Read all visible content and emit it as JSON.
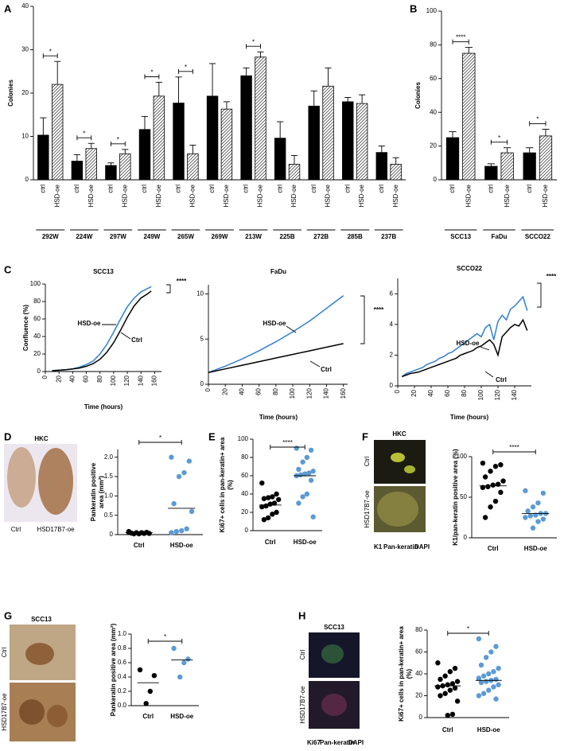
{
  "chart_data": [
    {
      "type": "bar",
      "panel": "A",
      "ylabel": "Colonies",
      "ylim": [
        0,
        40
      ],
      "yticks": [
        0,
        10,
        20,
        30,
        40
      ],
      "categories": [
        "292W",
        "224W",
        "297W",
        "249W",
        "265W",
        "269W",
        "213W",
        "225B",
        "272B",
        "285B",
        "237B"
      ],
      "series": [
        {
          "name": "ctrl",
          "color": "#000000",
          "values": [
            10.3,
            4.3,
            3.3,
            11.6,
            17.7,
            19.3,
            24,
            9.6,
            17,
            18,
            6.3
          ],
          "errors": [
            4,
            1.5,
            0.6,
            3,
            6,
            7.5,
            1.8,
            3.8,
            3.5,
            1,
            1.5
          ]
        },
        {
          "name": "HSD-oe",
          "color": "#ffffff",
          "hatch": true,
          "values": [
            22,
            7.2,
            6,
            19.3,
            6,
            16.3,
            28.3,
            3.6,
            21.6,
            17.6,
            3.6
          ],
          "errors": [
            5.3,
            1.2,
            1,
            3.2,
            2,
            1.7,
            1.2,
            2,
            4.2,
            2,
            1.5
          ]
        }
      ],
      "significance": [
        "*",
        "*",
        "*",
        "*",
        "*",
        null,
        "*",
        null,
        null,
        null,
        null
      ]
    },
    {
      "type": "bar",
      "panel": "B",
      "ylabel": "Colonies",
      "ylim": [
        0,
        100
      ],
      "yticks": [
        0,
        20,
        40,
        60,
        80,
        100
      ],
      "categories": [
        "SCC13",
        "FaDu",
        "SCCO22"
      ],
      "series": [
        {
          "name": "ctrl",
          "color": "#000000",
          "values": [
            25,
            8,
            16
          ],
          "errors": [
            3.5,
            1.5,
            3
          ]
        },
        {
          "name": "HSD-oe",
          "color": "#ffffff",
          "hatch": true,
          "values": [
            75,
            16,
            26
          ],
          "errors": [
            3.5,
            3,
            4
          ]
        }
      ],
      "significance": [
        "****",
        "*",
        "*"
      ]
    },
    {
      "type": "line",
      "panel": "C",
      "title": "SCC13",
      "ylabel": "Confluence (%)",
      "xlabel": "Time (hours)",
      "xlim": [
        0,
        170
      ],
      "xticks": [
        0,
        20,
        40,
        60,
        80,
        100,
        120,
        140,
        160
      ],
      "ylim": [
        0,
        100
      ],
      "yticks": [
        0,
        20,
        40,
        60,
        80,
        100
      ],
      "x": [
        10,
        20,
        30,
        40,
        50,
        60,
        70,
        80,
        90,
        100,
        110,
        120,
        130,
        140,
        150,
        155
      ],
      "series": [
        {
          "name": "HSD-oe",
          "color": "#2f7fcf",
          "values": [
            1,
            1.5,
            2,
            3,
            5,
            8,
            12,
            20,
            31,
            45,
            60,
            74,
            84,
            91,
            95,
            97
          ]
        },
        {
          "name": "Ctrl",
          "color": "#000000",
          "values": [
            1,
            1.5,
            2,
            3,
            4,
            6,
            9,
            14,
            22,
            33,
            47,
            62,
            75,
            84,
            89,
            92
          ]
        }
      ],
      "significance": "****"
    },
    {
      "type": "line",
      "title": "FaDu",
      "xlabel": "Time (hours)",
      "xlim": [
        0,
        165
      ],
      "xticks": [
        0,
        20,
        40,
        60,
        80,
        100,
        120,
        140,
        160
      ],
      "ylim": [
        0,
        11
      ],
      "yticks": [
        0,
        5,
        10
      ],
      "x": [
        0,
        20,
        40,
        60,
        80,
        100,
        120,
        140,
        160
      ],
      "series": [
        {
          "name": "HSD-oe",
          "color": "#2f7fcf",
          "values": [
            1.3,
            2.0,
            2.8,
            3.7,
            4.7,
            5.8,
            7.0,
            8.4,
            9.8
          ]
        },
        {
          "name": "Ctrl",
          "color": "#000000",
          "values": [
            1.3,
            1.7,
            2.1,
            2.5,
            2.9,
            3.3,
            3.7,
            4.1,
            4.5
          ]
        }
      ],
      "significance": "****"
    },
    {
      "type": "line",
      "title": "SCCO22",
      "xlabel": "Time (hours)",
      "xlim": [
        0,
        160
      ],
      "xticks": [
        0,
        20,
        40,
        60,
        80,
        100,
        120,
        140
      ],
      "ylim": [
        0,
        7
      ],
      "yticks": [
        0,
        2,
        4,
        6
      ],
      "x": [
        5,
        10,
        15,
        20,
        25,
        30,
        35,
        40,
        45,
        50,
        55,
        60,
        65,
        70,
        75,
        80,
        85,
        90,
        95,
        100,
        105,
        110,
        115,
        120,
        125,
        130,
        135,
        140,
        145,
        150,
        155
      ],
      "series": [
        {
          "name": "HSD-oe",
          "color": "#2f7fcf",
          "values": [
            0.6,
            0.8,
            0.9,
            1.0,
            1.1,
            1.2,
            1.4,
            1.5,
            1.6,
            1.8,
            1.9,
            2.1,
            2.2,
            2.4,
            2.6,
            2.8,
            3.0,
            3.2,
            3.4,
            3.2,
            3.8,
            4.0,
            3.0,
            4.2,
            4.6,
            4.3,
            5.0,
            5.2,
            5.5,
            5.8,
            4.9
          ]
        },
        {
          "name": "Ctrl",
          "color": "#000000",
          "values": [
            0.6,
            0.7,
            0.8,
            0.85,
            0.9,
            1.0,
            1.1,
            1.2,
            1.3,
            1.4,
            1.5,
            1.6,
            1.7,
            1.8,
            2.0,
            2.1,
            2.2,
            2.3,
            2.5,
            2.6,
            2.8,
            3.0,
            2.7,
            2.0,
            3.2,
            3.5,
            3.8,
            4.0,
            3.9,
            4.3,
            3.6
          ]
        }
      ],
      "significance": "****"
    },
    {
      "type": "dot",
      "panel": "D",
      "image_title": "HKC",
      "image_labels": [
        "Ctrl",
        "HSD17B7-oe"
      ],
      "ylabel": [
        "Pankeratin positive",
        "area (mm²)"
      ],
      "ylim": [
        0,
        2.2
      ],
      "yticks": [
        0,
        0.5,
        {
          "value": 1,
          "label": "1.0"
        },
        1.5,
        {
          "value": 2,
          "label": "2.0"
        }
      ],
      "categories": [
        "Ctrl",
        "HSD-oe"
      ],
      "colors": [
        "#000000",
        "#5b9bd5"
      ],
      "values": [
        [
          0.08,
          0.06,
          0.05,
          0.05,
          0.04,
          0.03,
          0.03,
          0.02,
          0.02,
          0.06
        ],
        [
          2.0,
          1.9,
          1.6,
          1.5,
          0.8,
          0.6,
          0.15,
          0.1,
          0.08,
          0.05
        ]
      ],
      "medians": [
        0.05,
        0.68
      ],
      "significance": "*"
    },
    {
      "type": "dot",
      "panel": "E",
      "ylabel": [
        "Ki67+ cells in pan-keratin+ area",
        "(%)"
      ],
      "ylim": [
        0,
        100
      ],
      "yticks": [
        0,
        20,
        40,
        60,
        80,
        100
      ],
      "categories": [
        "Ctrl",
        "HSD-oe"
      ],
      "colors": [
        "#000000",
        "#5b9bd5"
      ],
      "values": [
        [
          52,
          40,
          37,
          36,
          35,
          34,
          30,
          29,
          27,
          26,
          20,
          18,
          14,
          12
        ],
        [
          90,
          88,
          80,
          75,
          67,
          65,
          63,
          62,
          61,
          60,
          55,
          40,
          37,
          30,
          15
        ]
      ],
      "medians": [
        28,
        60
      ],
      "significance": "****"
    },
    {
      "type": "dot",
      "panel": "F",
      "image_title": "HKC",
      "image_labels": [
        "Ctrl",
        "HSD17B7-oe"
      ],
      "stains": [
        {
          "text": "K1",
          "color": "#e02020"
        },
        {
          "text": "Pan-keratin",
          "color": "#1f9e2f"
        },
        {
          "text": "DAPI",
          "color": "#3434c8"
        }
      ],
      "ylabel": "K1/pan-keratin positive area (%)",
      "ylim": [
        0,
        100
      ],
      "yticks": [
        0,
        50,
        100
      ],
      "categories": [
        "Ctrl",
        "HSD-oe"
      ],
      "colors": [
        "#000000",
        "#5b9bd5"
      ],
      "values": [
        [
          92,
          90,
          88,
          82,
          75,
          70,
          66,
          65,
          63,
          62,
          56,
          45,
          38,
          25
        ],
        [
          58,
          55,
          43,
          38,
          33,
          30,
          30,
          28,
          27,
          25,
          23,
          20,
          12
        ]
      ],
      "medians": [
        64,
        30
      ],
      "significance": "****"
    },
    {
      "type": "dot",
      "panel": "G",
      "image_title": "SCC13",
      "image_labels": [
        "Ctrl",
        "HSD17B7-oe"
      ],
      "ylabel": "Pankeratin positive area (mm²)",
      "ylim": [
        0,
        1
      ],
      "yticks": [
        {
          "value": 0,
          "label": "0.0"
        },
        0.2,
        0.4,
        0.6,
        0.8,
        {
          "value": 1,
          "label": "1.0"
        }
      ],
      "categories": [
        "Ctrl",
        "HSD-oe"
      ],
      "colors": [
        "#000000",
        "#5b9bd5"
      ],
      "values": [
        [
          0.5,
          0.42,
          0.2,
          0.03
        ],
        [
          0.8,
          0.65,
          0.6,
          0.4
        ]
      ],
      "medians": [
        0.32,
        0.64
      ],
      "significance": "*"
    },
    {
      "type": "dot",
      "panel": "H",
      "image_title": "SCC13",
      "image_labels": [
        "Ctrl",
        "HSD17B7-oe"
      ],
      "stains": [
        {
          "text": "Ki67",
          "color": "#e02020"
        },
        {
          "text": "Pan-keratin",
          "color": "#1f9e2f"
        },
        {
          "text": "DAPI",
          "color": "#3434c8"
        }
      ],
      "ylabel": [
        "Ki67+ cells in pan-keratin+ area",
        "(%)"
      ],
      "ylim": [
        0,
        80
      ],
      "yticks": [
        0,
        20,
        40,
        60,
        80
      ],
      "categories": [
        "Ctrl",
        "HSD-oe"
      ],
      "colors": [
        "#000000",
        "#5b9bd5"
      ],
      "values": [
        [
          50,
          45,
          42,
          38,
          35,
          33,
          31,
          30,
          29,
          28,
          27,
          25,
          22,
          20,
          15,
          3,
          2
        ],
        [
          72,
          65,
          60,
          55,
          48,
          45,
          42,
          40,
          38,
          36,
          35,
          34,
          33,
          32,
          30,
          28,
          25,
          22,
          20,
          17
        ]
      ],
      "medians": [
        29,
        34
      ],
      "significance": "*"
    }
  ]
}
